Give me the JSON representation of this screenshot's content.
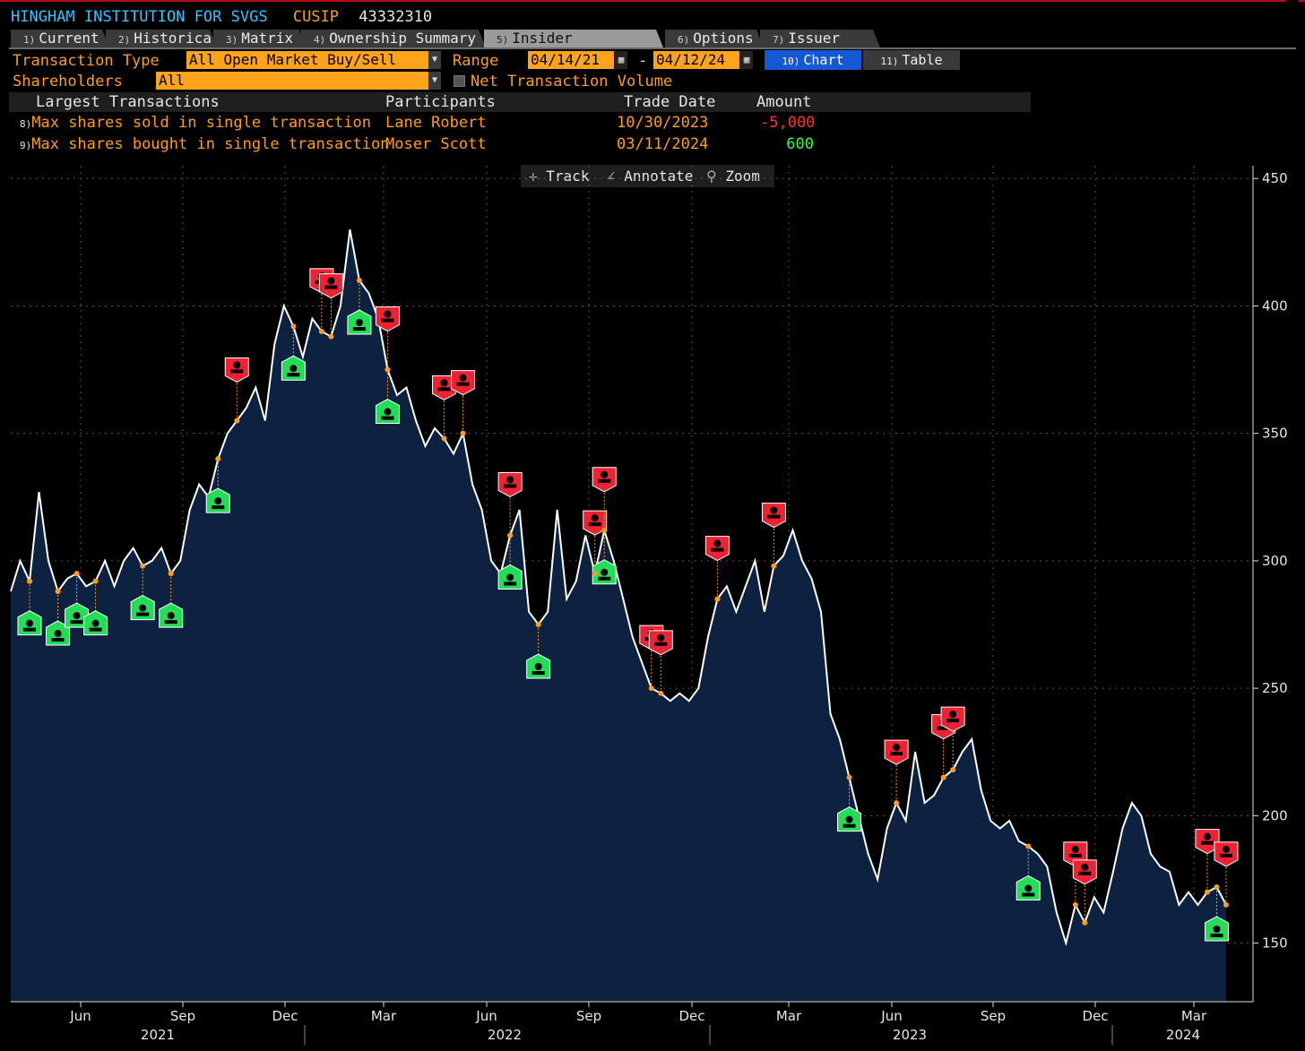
{
  "header": {
    "security_name": "HINGHAM INSTITUTION FOR SVGS",
    "id_type": "CUSIP",
    "id_value": "43332310"
  },
  "tabs": [
    {
      "num": "1)",
      "label": "Current"
    },
    {
      "num": "2)",
      "label": "Historical"
    },
    {
      "num": "3)",
      "label": "Matrix"
    },
    {
      "num": "4)",
      "label": "Ownership Summary"
    },
    {
      "num": "5)",
      "label": "Insider Transactions"
    },
    {
      "num": "6)",
      "label": "Options"
    },
    {
      "num": "7)",
      "label": "Issuer Debt"
    }
  ],
  "filters": {
    "transaction_type_label": "Transaction Type",
    "transaction_type_value": "All Open Market Buy/Sell",
    "range_label": "Range",
    "range_start": "04/14/21",
    "range_sep": "-",
    "range_end": "04/12/24",
    "shareholders_label": "Shareholders",
    "shareholders_value": "All",
    "net_volume_label": "Net Transaction Volume"
  },
  "view_buttons": {
    "chart_num": "10)",
    "chart_label": "Chart",
    "table_num": "11)",
    "table_label": "Table"
  },
  "largest_table": {
    "headers": [
      "Largest Transactions",
      "Participants",
      "Trade Date",
      "Amount"
    ],
    "rows": [
      {
        "idx": "8)",
        "desc": "Max shares sold in single transaction",
        "participant": "Lane Robert",
        "date": "10/30/2023",
        "amount": "-5,000"
      },
      {
        "idx": "9)",
        "desc": "Max shares bought in single transaction",
        "participant": "Moser Scott",
        "date": "03/11/2024",
        "amount": "600"
      }
    ]
  },
  "chart_toolbar": {
    "track": "Track",
    "annotate": "Annotate",
    "zoom": "Zoom"
  },
  "colors": {
    "accent_orange": "#ff9c1a",
    "title_blue": "#33c3ff",
    "sell_red": "#ee2233",
    "buy_green": "#22dd55",
    "area_fill": "#0c2240",
    "amount_neg": "#ff3333",
    "amount_pos": "#33ff44"
  },
  "chart_data": {
    "type": "area",
    "y_ticks": [
      150,
      200,
      250,
      300,
      350,
      400,
      450
    ],
    "ylim": [
      127,
      455
    ],
    "x_month_labels": [
      "Jun",
      "Sep",
      "Dec",
      "Mar",
      "Jun",
      "Sep",
      "Dec",
      "Mar",
      "Jun",
      "Sep",
      "Dec",
      "Mar"
    ],
    "x_year_labels": [
      "2021",
      "2022",
      "2023",
      "2024"
    ],
    "legend": "none",
    "grid": true,
    "series": [
      {
        "values": [
          288,
          300,
          292,
          327,
          300,
          288,
          293,
          295,
          290,
          292,
          300,
          290,
          300,
          305,
          298,
          300,
          305,
          295,
          300,
          320,
          330,
          325,
          340,
          350,
          355,
          360,
          368,
          355,
          385,
          400,
          392,
          380,
          395,
          390,
          388,
          400,
          430,
          410,
          405,
          395,
          375,
          365,
          368,
          355,
          345,
          352,
          348,
          342,
          350,
          330,
          320,
          300,
          295,
          310,
          320,
          280,
          275,
          280,
          320,
          285,
          292,
          310,
          295,
          312,
          300,
          285,
          270,
          260,
          250,
          248,
          245,
          248,
          245,
          250,
          270,
          285,
          290,
          280,
          290,
          300,
          280,
          298,
          302,
          312,
          300,
          293,
          280,
          240,
          230,
          215,
          200,
          185,
          175,
          195,
          205,
          198,
          225,
          205,
          208,
          215,
          218,
          225,
          230,
          210,
          198,
          195,
          198,
          190,
          188,
          185,
          180,
          162,
          150,
          165,
          158,
          168,
          162,
          178,
          195,
          205,
          200,
          185,
          180,
          178,
          165,
          170,
          165,
          170,
          172,
          165
        ]
      }
    ],
    "sell_markers": [
      24,
      33,
      34,
      40,
      46,
      48,
      53,
      62,
      63,
      68,
      69,
      75,
      81,
      94,
      99,
      100,
      113,
      114,
      127,
      129,
      136,
      140,
      141,
      142,
      143,
      146,
      150,
      153,
      156,
      161,
      167,
      168
    ],
    "buy_markers": [
      2,
      5,
      7,
      9,
      14,
      17,
      22,
      30,
      37,
      40,
      53,
      56,
      63,
      89,
      108,
      128,
      144,
      156,
      159,
      160
    ],
    "annotations": []
  }
}
